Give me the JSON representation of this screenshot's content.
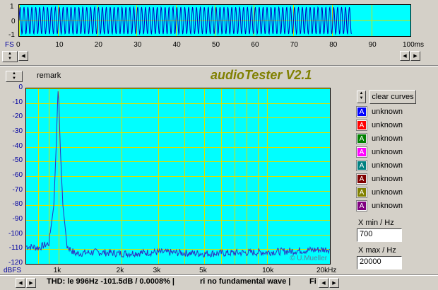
{
  "top_scope": {
    "y_ticks": [
      "1",
      "0",
      "-1"
    ],
    "x_ticks": [
      "0",
      "10",
      "20",
      "30",
      "40",
      "50",
      "60",
      "70",
      "80",
      "90",
      "100ms"
    ],
    "unit_label": "FS",
    "wave_end_ms": 85,
    "wave_color": "#0000c0"
  },
  "header": {
    "remark_label": "remark",
    "app_title": "audioTester V2.1"
  },
  "spectrum": {
    "y_unit": "dBFS",
    "watermark": "© U.Mueller",
    "trace_color": "#3030c0",
    "chart_data": {
      "type": "line",
      "xscale": "log",
      "xlim": [
        700,
        20000
      ],
      "ylim": [
        -120,
        0
      ],
      "y_ticks": [
        "0",
        "-10",
        "-20",
        "-30",
        "-40",
        "-50",
        "-60",
        "-70",
        "-80",
        "-90",
        "-100",
        "-110",
        "-120"
      ],
      "x_ticks": [
        "1k",
        "2k",
        "3k",
        "5k",
        "10k",
        "20kHz"
      ],
      "grid": true,
      "series": [
        {
          "x": [
            700,
            800,
            900,
            950,
            975,
            990,
            996,
            1005,
            1020,
            1050,
            1100,
            1200,
            1500,
            2000,
            3000,
            5000,
            10000,
            20000
          ],
          "y": [
            -108,
            -109,
            -106,
            -80,
            -40,
            -10,
            -2,
            -10,
            -40,
            -80,
            -108,
            -113,
            -112,
            -113,
            -112,
            -113,
            -112,
            -110
          ]
        }
      ]
    }
  },
  "legend": {
    "clear_button": "clear curves",
    "items": [
      {
        "letter": "A",
        "label": "unknown",
        "color": "#0000ff"
      },
      {
        "letter": "A",
        "label": "unknown",
        "color": "#ff0000"
      },
      {
        "letter": "A",
        "label": "unknown",
        "color": "#008000"
      },
      {
        "letter": "A",
        "label": "unknown",
        "color": "#ff00ff"
      },
      {
        "letter": "A",
        "label": "unknown",
        "color": "#008080"
      },
      {
        "letter": "A",
        "label": "unknown",
        "color": "#800000"
      },
      {
        "letter": "A",
        "label": "unknown",
        "color": "#808000"
      },
      {
        "letter": "A",
        "label": "unknown",
        "color": "#800080"
      }
    ]
  },
  "x_range": {
    "min_label": "X min / Hz",
    "min_value": "700",
    "max_label": "X max / Hz",
    "max_value": "20000"
  },
  "status_bar": {
    "text1": "THD: le 996Hz -101.5dB / 0.0008% |",
    "text2": "ri no fundamental wave |",
    "text3": "Fi"
  }
}
